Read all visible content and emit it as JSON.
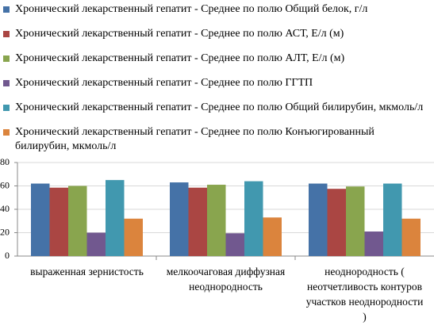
{
  "chart_data": {
    "type": "bar",
    "categories": [
      "выраженная зернистость",
      "мелкоочаговая диффузная неоднородность",
      "неоднородность ( неотчетливость контуров участков неоднородности )"
    ],
    "series": [
      {
        "name": "Хронический лекарственный гепатит - Среднее по полю Общий белок, г/л",
        "color": "#4572a7",
        "values": [
          62,
          63,
          62
        ]
      },
      {
        "name": "Хронический лекарственный гепатит - Среднее по полю АСТ, Е/л (м)",
        "color": "#aa4643",
        "values": [
          58.5,
          58.5,
          57.5
        ]
      },
      {
        "name": "Хронический лекарственный гепатит - Среднее по полю АЛТ, Е/л (м)",
        "color": "#89a54e",
        "values": [
          60,
          61,
          59.5
        ]
      },
      {
        "name": "Хронический лекарственный гепатит - Среднее по полю ГГТП",
        "color": "#71588f",
        "values": [
          20,
          19.5,
          21
        ]
      },
      {
        "name": "Хронический лекарственный гепатит - Среднее по полю Общий билирубин, мкмоль/л",
        "color": "#4198af",
        "values": [
          65,
          64,
          62
        ]
      },
      {
        "name": "Хронический лекарственный гепатит - Среднее по полю Конъюгированный билирубин, мкмоль/л",
        "color": "#db843d",
        "values": [
          32,
          33,
          32
        ]
      }
    ],
    "ylim": [
      0,
      80
    ],
    "yticks": [
      0,
      20,
      40,
      60,
      80
    ],
    "grid": true
  }
}
